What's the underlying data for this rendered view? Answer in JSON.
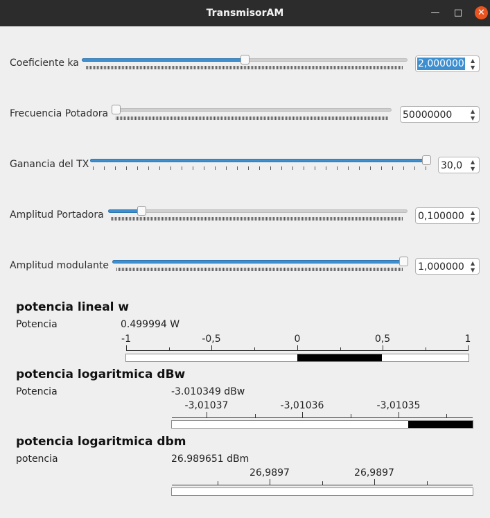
{
  "window": {
    "title": "TransmisorAM"
  },
  "controls": [
    {
      "label": "Coeficiente ka",
      "value": "2,000000",
      "fraction": 0.5
    },
    {
      "label": "Frecuencia Potadora",
      "value": "50000000",
      "fraction": 0.0
    },
    {
      "label": "Ganancia del TX",
      "value": "30,0",
      "fraction": 1.0
    },
    {
      "label": "Amplitud Portadora",
      "value": "0,100000",
      "fraction": 0.1
    },
    {
      "label": "Amplitud modulante",
      "value": "1,000000",
      "fraction": 1.0
    }
  ],
  "gauges": [
    {
      "heading": "potencia lineal w",
      "label": "Potencia",
      "reading": "0.499994 W",
      "tick_labels": [
        "-1",
        "-0,5",
        "0",
        "0,5",
        "1"
      ],
      "range": [
        -1,
        1
      ],
      "value": 0.499994
    },
    {
      "heading": "potencia logaritmica dBw",
      "label": "Potencia",
      "reading": "-3.010349 dBw",
      "tick_labels": [
        "-3,01037",
        "-3,01036",
        "-3,01035"
      ],
      "value": -3.010349
    },
    {
      "heading": "potencia logaritmica dbm",
      "label": "potencia",
      "reading": "26.989651 dBm",
      "tick_labels": [
        "26,9897",
        "26,9897"
      ],
      "value": 26.989651
    }
  ]
}
